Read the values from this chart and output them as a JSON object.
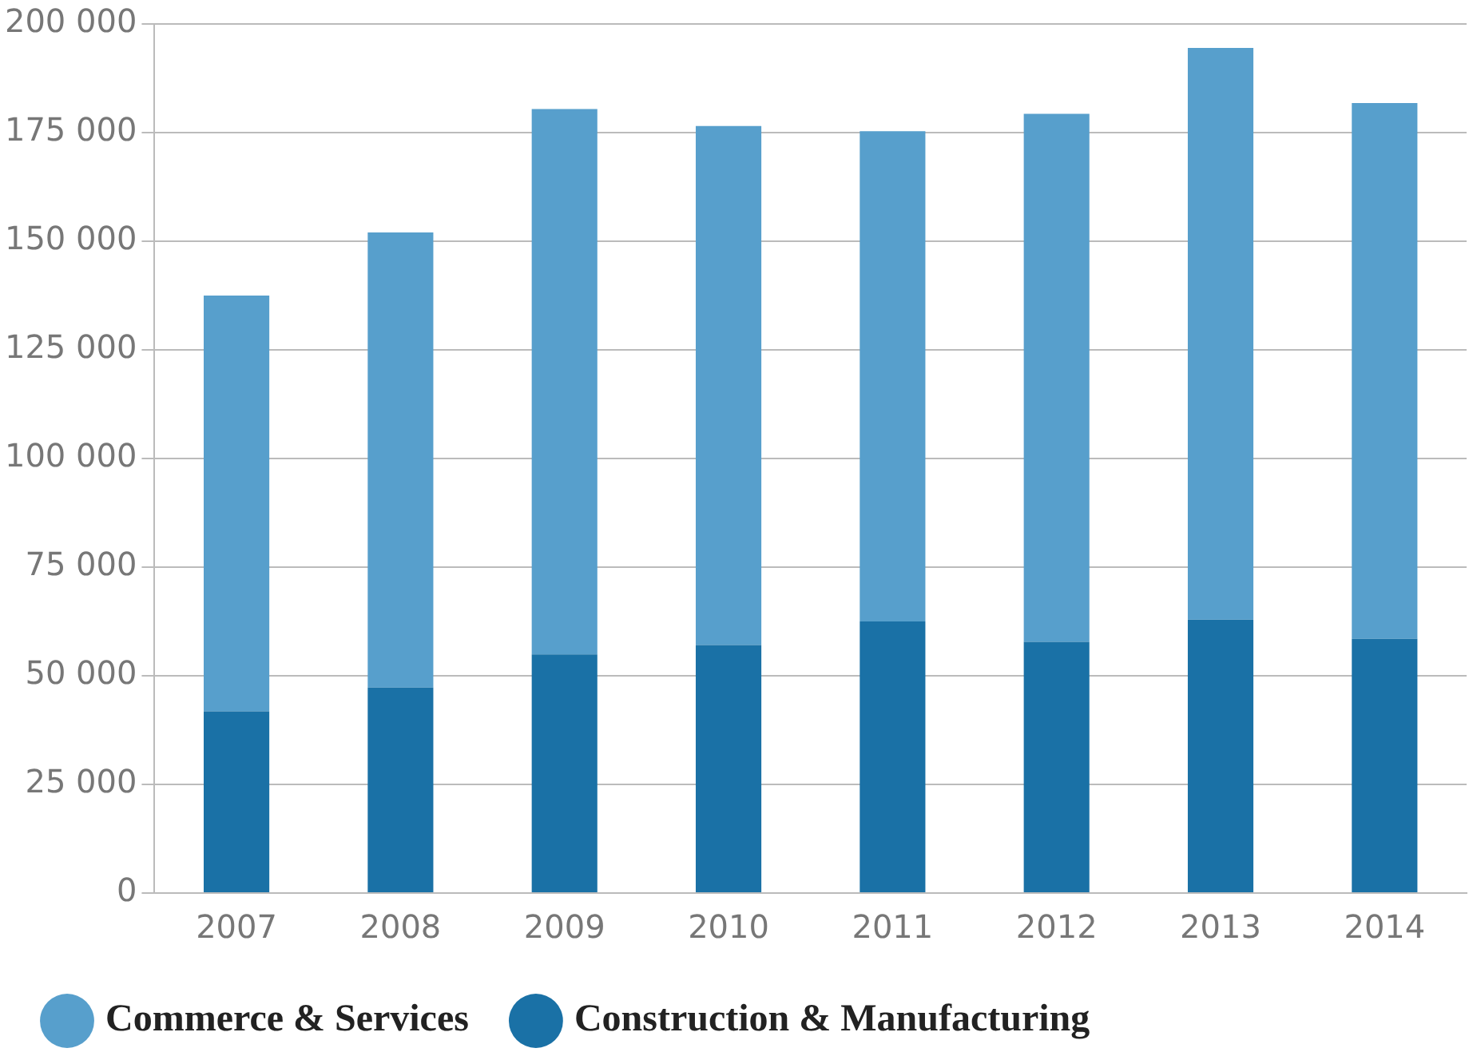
{
  "chart_data": {
    "type": "bar",
    "stacked": true,
    "categories": [
      "2007",
      "2008",
      "2009",
      "2010",
      "2011",
      "2012",
      "2013",
      "2014"
    ],
    "series": [
      {
        "name": "Construction & Manufacturing",
        "color": "#1a71a6",
        "values": [
          41800,
          47300,
          54900,
          57100,
          62500,
          57800,
          62900,
          58500
        ]
      },
      {
        "name": "Commerce & Services",
        "color": "#579fcc",
        "values": [
          95700,
          104700,
          125500,
          119400,
          112800,
          121500,
          131600,
          123300
        ]
      }
    ],
    "ylim": [
      0,
      200000
    ],
    "yticks": [
      {
        "value": 0,
        "label": "0"
      },
      {
        "value": 25000,
        "label": "25 000"
      },
      {
        "value": 50000,
        "label": "50 000"
      },
      {
        "value": 75000,
        "label": "75 000"
      },
      {
        "value": 100000,
        "label": "100 000"
      },
      {
        "value": 125000,
        "label": "125 000"
      },
      {
        "value": 150000,
        "label": "150 000"
      },
      {
        "value": 175000,
        "label": "175 000"
      },
      {
        "value": 200000,
        "label": "200 000"
      }
    ],
    "grid": "y",
    "legend": "bottom"
  }
}
